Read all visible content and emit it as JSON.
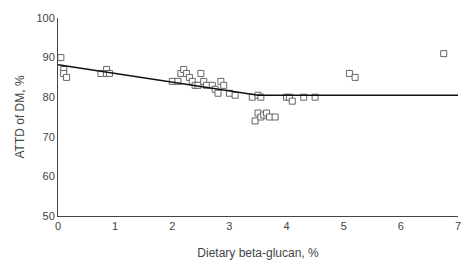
{
  "chart_data": {
    "type": "scatter",
    "xlabel": "Dietary beta-glucan, %",
    "ylabel": "ATTD of DM, %",
    "xlim": [
      0,
      7
    ],
    "ylim": [
      50,
      100
    ],
    "xticks": [
      0,
      1,
      2,
      3,
      4,
      5,
      6,
      7
    ],
    "yticks": [
      50,
      60,
      70,
      80,
      90,
      100
    ],
    "grid": false,
    "series": [
      {
        "type": "scatter",
        "marker": "square",
        "color": "#666666",
        "x": [
          0.05,
          0.1,
          0.1,
          0.15,
          0.75,
          0.85,
          0.85,
          0.9,
          2.0,
          2.1,
          2.15,
          2.2,
          2.25,
          2.3,
          2.35,
          2.4,
          2.45,
          2.5,
          2.55,
          2.6,
          2.7,
          2.75,
          2.8,
          2.85,
          2.9,
          3.0,
          3.1,
          3.4,
          3.45,
          3.5,
          3.55,
          3.5,
          3.55,
          3.6,
          3.65,
          3.7,
          3.8,
          4.0,
          4.05,
          4.1,
          4.3,
          4.5,
          5.1,
          5.2,
          6.75
        ],
        "values": [
          90,
          87,
          86,
          85,
          86,
          87,
          86,
          86,
          84,
          84,
          86,
          87,
          86,
          85,
          84,
          83,
          83,
          86,
          84,
          83,
          83,
          82,
          81,
          84,
          83,
          81,
          80.5,
          80,
          74,
          80.5,
          80,
          76,
          75,
          75.5,
          76,
          75,
          75,
          80,
          80,
          79,
          80,
          80,
          86,
          85,
          91
        ]
      },
      {
        "type": "line",
        "line_style": "solid",
        "color": "#111111",
        "x": [
          0.0,
          3.5,
          7
        ],
        "values": [
          88.2,
          80.5,
          80.5
        ]
      }
    ]
  }
}
